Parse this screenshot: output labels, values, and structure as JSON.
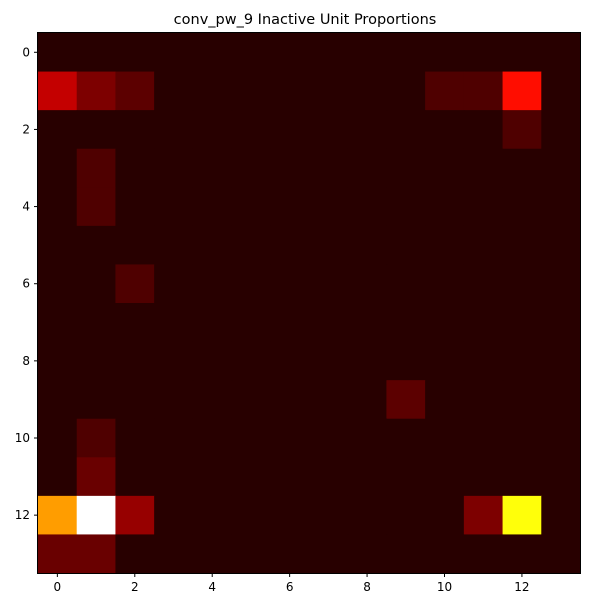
{
  "chart_data": {
    "type": "heatmap",
    "title": "conv_pw_9 Inactive Unit Proportions",
    "xlabel": "",
    "ylabel": "",
    "colormap": "hot",
    "rows": 14,
    "cols": 14,
    "x_ticks": [
      0,
      2,
      4,
      6,
      8,
      10,
      12
    ],
    "y_ticks": [
      0,
      2,
      4,
      6,
      8,
      10,
      12
    ],
    "y_axis_inverted": true,
    "values": [
      [
        0.02,
        0.02,
        0.02,
        0.02,
        0.02,
        0.02,
        0.02,
        0.02,
        0.02,
        0.02,
        0.02,
        0.02,
        0.02,
        0.02
      ],
      [
        0.26,
        0.15,
        0.1,
        0.02,
        0.02,
        0.02,
        0.02,
        0.02,
        0.02,
        0.02,
        0.08,
        0.08,
        0.37,
        0.02
      ],
      [
        0.02,
        0.02,
        0.02,
        0.02,
        0.02,
        0.02,
        0.02,
        0.02,
        0.02,
        0.02,
        0.02,
        0.02,
        0.08,
        0.02
      ],
      [
        0.02,
        0.08,
        0.02,
        0.02,
        0.02,
        0.02,
        0.02,
        0.02,
        0.02,
        0.02,
        0.02,
        0.02,
        0.02,
        0.02
      ],
      [
        0.02,
        0.08,
        0.02,
        0.02,
        0.02,
        0.02,
        0.02,
        0.02,
        0.02,
        0.02,
        0.02,
        0.02,
        0.02,
        0.02
      ],
      [
        0.02,
        0.02,
        0.02,
        0.02,
        0.02,
        0.02,
        0.02,
        0.02,
        0.02,
        0.02,
        0.02,
        0.02,
        0.02,
        0.02
      ],
      [
        0.02,
        0.02,
        0.08,
        0.02,
        0.02,
        0.02,
        0.02,
        0.02,
        0.02,
        0.02,
        0.02,
        0.02,
        0.02,
        0.02
      ],
      [
        0.02,
        0.02,
        0.02,
        0.02,
        0.02,
        0.02,
        0.02,
        0.02,
        0.02,
        0.02,
        0.02,
        0.02,
        0.02,
        0.02
      ],
      [
        0.02,
        0.02,
        0.02,
        0.02,
        0.02,
        0.02,
        0.02,
        0.02,
        0.02,
        0.02,
        0.02,
        0.02,
        0.02,
        0.02
      ],
      [
        0.02,
        0.02,
        0.02,
        0.02,
        0.02,
        0.02,
        0.02,
        0.02,
        0.02,
        0.1,
        0.02,
        0.02,
        0.02,
        0.02
      ],
      [
        0.02,
        0.08,
        0.02,
        0.02,
        0.02,
        0.02,
        0.02,
        0.02,
        0.02,
        0.02,
        0.02,
        0.02,
        0.02,
        0.02
      ],
      [
        0.02,
        0.12,
        0.02,
        0.02,
        0.02,
        0.02,
        0.02,
        0.02,
        0.02,
        0.02,
        0.02,
        0.02,
        0.02,
        0.02
      ],
      [
        0.59,
        1.0,
        0.19,
        0.02,
        0.02,
        0.02,
        0.02,
        0.02,
        0.02,
        0.02,
        0.02,
        0.15,
        0.75,
        0.02
      ],
      [
        0.12,
        0.12,
        0.02,
        0.02,
        0.02,
        0.02,
        0.02,
        0.02,
        0.02,
        0.02,
        0.02,
        0.02,
        0.02,
        0.02
      ]
    ]
  }
}
